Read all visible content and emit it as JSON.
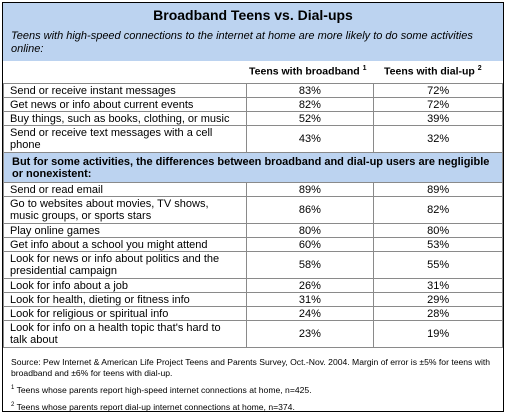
{
  "title": "Broadband Teens vs. Dial-ups",
  "subtitle": "Teens with high-speed connections to the internet at home are more likely to do some activities online:",
  "columns": {
    "broadband": "Teens with broadband",
    "broadband_sup": "1",
    "dialup": "Teens with dial-up",
    "dialup_sup": "2"
  },
  "group1": [
    {
      "label": "Send or receive instant messages",
      "broadband": "83%",
      "dialup": "72%"
    },
    {
      "label": "Get news or info about current events",
      "broadband": "82%",
      "dialup": "72%"
    },
    {
      "label": "Buy things, such as books, clothing, or music",
      "broadband": "52%",
      "dialup": "39%"
    },
    {
      "label": "Send or receive text messages with a cell phone",
      "broadband": "43%",
      "dialup": "32%"
    }
  ],
  "section_header": "But for some activities, the differences between broadband and dial-up users are negligible or nonexistent:",
  "group2": [
    {
      "label": "Send or read email",
      "broadband": "89%",
      "dialup": "89%"
    },
    {
      "label": "Go to websites about movies, TV shows, music groups, or sports stars",
      "broadband": "86%",
      "dialup": "82%"
    },
    {
      "label": "Play online games",
      "broadband": "80%",
      "dialup": "80%"
    },
    {
      "label": "Get info about a school you might attend",
      "broadband": "60%",
      "dialup": "53%"
    },
    {
      "label": "Look for news or info about politics and the presidential campaign",
      "broadband": "58%",
      "dialup": "55%"
    },
    {
      "label": "Look for info about a job",
      "broadband": "26%",
      "dialup": "31%"
    },
    {
      "label": "Look for health, dieting or fitness info",
      "broadband": "31%",
      "dialup": "29%"
    },
    {
      "label": "Look for religious or spiritual info",
      "broadband": "24%",
      "dialup": "28%"
    },
    {
      "label": "Look for info on a health topic that's hard to talk about",
      "broadband": "23%",
      "dialup": "19%"
    }
  ],
  "notes": {
    "source": "Source: Pew Internet & American Life Project Teens and Parents Survey, Oct.-Nov. 2004. Margin of error is ±5% for teens with broadband and ±6% for teens with dial-up.",
    "note1_sup": "1",
    "note1": " Teens whose parents report high-speed internet connections at home, n=425.",
    "note2_sup": "2",
    "note2": " Teens whose parents report dial-up internet connections at home, n=374."
  },
  "colors": {
    "header_bg": "#bcd3f0",
    "border": "#8a8a8a"
  }
}
